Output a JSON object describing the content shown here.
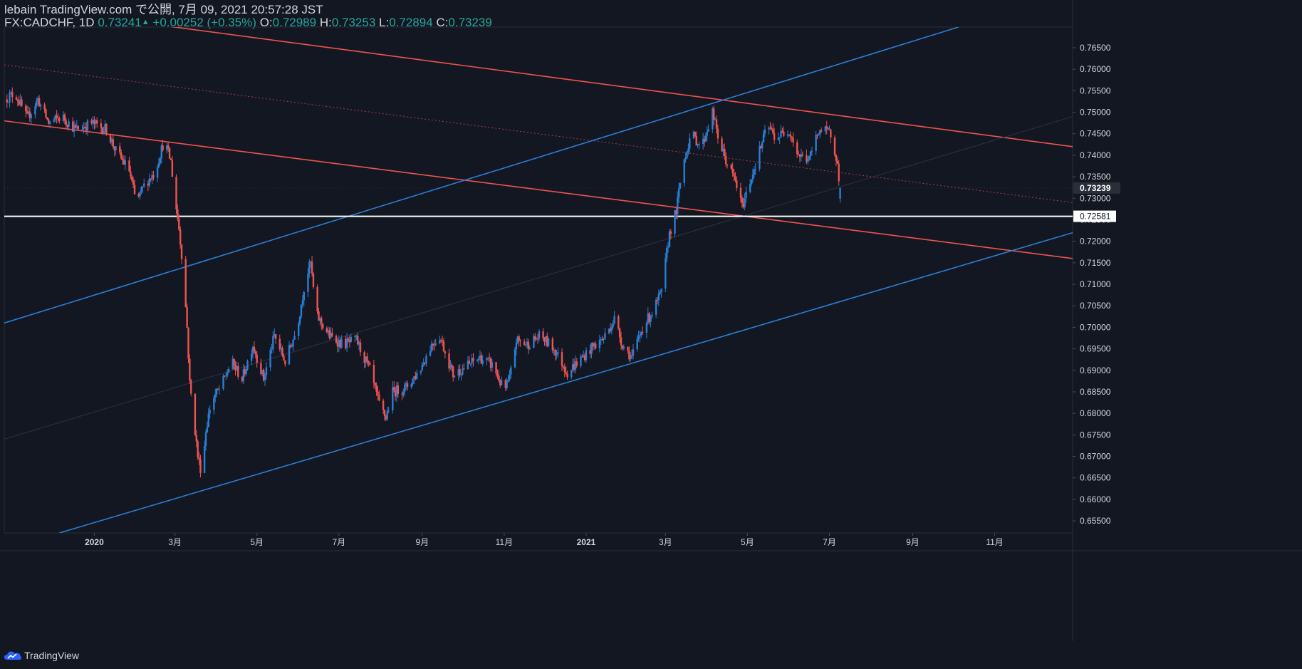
{
  "header": {
    "publish_line": "lebain TradingView.com で公開, 7月 09, 2021 20:57:28 JST",
    "symbol": "FX:CADCHF, 1D",
    "last": "0.73241",
    "change_arrow": "▲",
    "change": "+0.00252 (+0.35%)",
    "open_label": "O:",
    "open": "0.72989",
    "high_label": "H:",
    "high": "0.73253",
    "low_label": "L:",
    "low": "0.72894",
    "close_label": "C:",
    "close": "0.73239"
  },
  "footer": {
    "brand": "TradingView"
  },
  "colors": {
    "background": "#131722",
    "up": "#2a7fd4",
    "down": "#ef5350",
    "support_line": "#ffffff",
    "axis_text": "#d1d4dc",
    "current_badge": "#2a2e39"
  },
  "chart_data": {
    "type": "candlestick",
    "symbol": "FX:CADCHF",
    "interval": "1D",
    "y_ticks": [
      0.765,
      0.76,
      0.755,
      0.75,
      0.745,
      0.74,
      0.735,
      0.73,
      0.725,
      0.72,
      0.715,
      0.71,
      0.705,
      0.7,
      0.695,
      0.69,
      0.685,
      0.68,
      0.675,
      0.67,
      0.665,
      0.66,
      0.655
    ],
    "y_tick_labels": [
      "0.76500",
      "0.76000",
      "0.75500",
      "0.75000",
      "0.74500",
      "0.74000",
      "0.73500",
      "0.73000",
      "0.72500",
      "0.72000",
      "0.71500",
      "0.71000",
      "0.70500",
      "0.70000",
      "0.69500",
      "0.69000",
      "0.68500",
      "0.68000",
      "0.67500",
      "0.67000",
      "0.66500",
      "0.66000",
      "0.65500"
    ],
    "ylim": [
      0.6522,
      0.7698
    ],
    "x_range": [
      "2019-10-26",
      "2021-12-29"
    ],
    "x_ticks": [
      {
        "date": "2020-01-01",
        "label": "2020"
      },
      {
        "date": "2020-03-01",
        "label": "3月"
      },
      {
        "date": "2020-05-01",
        "label": "5月"
      },
      {
        "date": "2020-07-01",
        "label": "7月"
      },
      {
        "date": "2020-09-01",
        "label": "9月"
      },
      {
        "date": "2020-11-01",
        "label": "11月"
      },
      {
        "date": "2021-01-01",
        "label": "2021"
      },
      {
        "date": "2021-03-01",
        "label": "3月"
      },
      {
        "date": "2021-05-01",
        "label": "5月"
      },
      {
        "date": "2021-07-01",
        "label": "7月"
      },
      {
        "date": "2021-09-01",
        "label": "9月"
      },
      {
        "date": "2021-11-01",
        "label": "11月"
      }
    ],
    "current_price": {
      "value": 0.73239,
      "label": "0.73239"
    },
    "horizontal_line": {
      "value": 0.72581,
      "label": "0.72581"
    },
    "price_path": [
      [
        "2019-10-26",
        0.753
      ],
      [
        "2019-11-03",
        0.7545
      ],
      [
        "2019-11-12",
        0.7485
      ],
      [
        "2019-11-20",
        0.753
      ],
      [
        "2019-11-28",
        0.7475
      ],
      [
        "2019-12-08",
        0.749
      ],
      [
        "2019-12-18",
        0.746
      ],
      [
        "2019-12-30",
        0.7475
      ],
      [
        "2020-01-10",
        0.746
      ],
      [
        "2020-01-17",
        0.741
      ],
      [
        "2020-01-27",
        0.7365
      ],
      [
        "2020-02-01",
        0.729
      ],
      [
        "2020-02-08",
        0.7335
      ],
      [
        "2020-02-15",
        0.736
      ],
      [
        "2020-02-22",
        0.7435
      ],
      [
        "2020-02-27",
        0.7385
      ],
      [
        "2020-03-01",
        0.73
      ],
      [
        "2020-03-04",
        0.723
      ],
      [
        "2020-03-07",
        0.714
      ],
      [
        "2020-03-10",
        0.7
      ],
      [
        "2020-03-12",
        0.687
      ],
      [
        "2020-03-15",
        0.679
      ],
      [
        "2020-03-18",
        0.67
      ],
      [
        "2020-03-21",
        0.666
      ],
      [
        "2020-03-24",
        0.676
      ],
      [
        "2020-03-28",
        0.683
      ],
      [
        "2020-04-04",
        0.686
      ],
      [
        "2020-04-12",
        0.692
      ],
      [
        "2020-04-20",
        0.688
      ],
      [
        "2020-04-28",
        0.696
      ],
      [
        "2020-05-06",
        0.688
      ],
      [
        "2020-05-14",
        0.698
      ],
      [
        "2020-05-22",
        0.692
      ],
      [
        "2020-05-31",
        0.7
      ],
      [
        "2020-06-06",
        0.711
      ],
      [
        "2020-06-10",
        0.715
      ],
      [
        "2020-06-14",
        0.703
      ],
      [
        "2020-06-24",
        0.698
      ],
      [
        "2020-07-04",
        0.696
      ],
      [
        "2020-07-14",
        0.697
      ],
      [
        "2020-07-24",
        0.69
      ],
      [
        "2020-07-31",
        0.682
      ],
      [
        "2020-08-05",
        0.679
      ],
      [
        "2020-08-10",
        0.685
      ],
      [
        "2020-08-20",
        0.686
      ],
      [
        "2020-08-30",
        0.69
      ],
      [
        "2020-09-08",
        0.696
      ],
      [
        "2020-09-14",
        0.698
      ],
      [
        "2020-09-24",
        0.689
      ],
      [
        "2020-10-04",
        0.691
      ],
      [
        "2020-10-14",
        0.693
      ],
      [
        "2020-10-24",
        0.691
      ],
      [
        "2020-11-01",
        0.685
      ],
      [
        "2020-11-05",
        0.688
      ],
      [
        "2020-11-10",
        0.697
      ],
      [
        "2020-11-18",
        0.696
      ],
      [
        "2020-11-28",
        0.698
      ],
      [
        "2020-12-08",
        0.695
      ],
      [
        "2020-12-18",
        0.6895
      ],
      [
        "2020-12-26",
        0.692
      ],
      [
        "2021-01-06",
        0.6955
      ],
      [
        "2021-01-14",
        0.6975
      ],
      [
        "2021-01-22",
        0.702
      ],
      [
        "2021-01-28",
        0.696
      ],
      [
        "2021-02-04",
        0.693
      ],
      [
        "2021-02-12",
        0.7
      ],
      [
        "2021-02-20",
        0.704
      ],
      [
        "2021-02-26",
        0.708
      ],
      [
        "2021-03-04",
        0.722
      ],
      [
        "2021-03-09",
        0.727
      ],
      [
        "2021-03-14",
        0.738
      ],
      [
        "2021-03-20",
        0.745
      ],
      [
        "2021-03-28",
        0.742
      ],
      [
        "2021-04-05",
        0.75
      ],
      [
        "2021-04-10",
        0.743
      ],
      [
        "2021-04-16",
        0.738
      ],
      [
        "2021-04-22",
        0.734
      ],
      [
        "2021-04-27",
        0.728
      ],
      [
        "2021-05-02",
        0.733
      ],
      [
        "2021-05-10",
        0.741
      ],
      [
        "2021-05-16",
        0.747
      ],
      [
        "2021-05-22",
        0.744
      ],
      [
        "2021-06-01",
        0.746
      ],
      [
        "2021-06-08",
        0.74
      ],
      [
        "2021-06-16",
        0.739
      ],
      [
        "2021-06-23",
        0.746
      ],
      [
        "2021-07-02",
        0.745
      ],
      [
        "2021-07-06",
        0.74
      ],
      [
        "2021-07-09",
        0.7324
      ]
    ],
    "trend_lines": [
      {
        "name": "red-upper-channel",
        "color": "#ef5350",
        "width": 1.6,
        "p1": [
          "2020-01-20",
          0.7715
        ],
        "p2": [
          "2021-12-29",
          0.742
        ]
      },
      {
        "name": "red-lower-channel",
        "color": "#ef5350",
        "width": 1.6,
        "p1": [
          "2019-10-26",
          0.748
        ],
        "p2": [
          "2021-12-29",
          0.716
        ]
      },
      {
        "name": "red-midline",
        "color": "#a8403d",
        "width": 1,
        "dash": "2,3",
        "p1": [
          "2019-10-26",
          0.761
        ],
        "p2": [
          "2021-12-29",
          0.729
        ]
      },
      {
        "name": "blue-upper-channel",
        "color": "#2a7fd4",
        "width": 1.6,
        "p1": [
          "2019-10-26",
          0.701
        ],
        "p2": [
          "2021-10-05",
          0.7698
        ]
      },
      {
        "name": "blue-lower-channel",
        "color": "#2a7fd4",
        "width": 1.6,
        "p1": [
          "2019-12-06",
          0.6522
        ],
        "p2": [
          "2021-12-29",
          0.722
        ]
      },
      {
        "name": "faint-midline",
        "color": "#2b3244",
        "width": 1,
        "p1": [
          "2019-10-26",
          0.674
        ],
        "p2": [
          "2021-12-29",
          0.749
        ]
      }
    ]
  }
}
